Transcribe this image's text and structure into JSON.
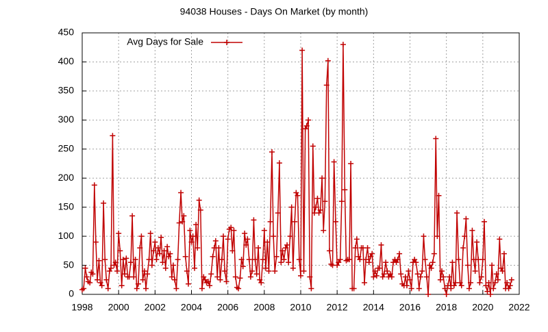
{
  "chart_data": {
    "type": "line",
    "title": "94038 Houses - Days On Market (by month)",
    "xlim": [
      1998,
      2022
    ],
    "xticks": [
      1998,
      2000,
      2002,
      2004,
      2006,
      2008,
      2010,
      2012,
      2014,
      2016,
      2018,
      2020,
      2022
    ],
    "ylim": [
      0,
      450
    ],
    "yticks": [
      0,
      50,
      100,
      150,
      200,
      250,
      300,
      350,
      400,
      450
    ],
    "grid": true,
    "legend": "top-left",
    "x": [
      1998.0,
      1998.08,
      1998.17,
      1998.25,
      1998.33,
      1998.42,
      1998.5,
      1998.58,
      1998.67,
      1998.75,
      1998.83,
      1998.92,
      1999.0,
      1999.08,
      1999.17,
      1999.25,
      1999.33,
      1999.42,
      1999.5,
      1999.58,
      1999.67,
      1999.75,
      1999.83,
      1999.92,
      2000.0,
      2000.08,
      2000.17,
      2000.25,
      2000.33,
      2000.42,
      2000.5,
      2000.58,
      2000.67,
      2000.75,
      2000.83,
      2000.92,
      2001.0,
      2001.08,
      2001.17,
      2001.25,
      2001.33,
      2001.42,
      2001.5,
      2001.58,
      2001.67,
      2001.75,
      2001.83,
      2001.92,
      2002.0,
      2002.08,
      2002.17,
      2002.25,
      2002.33,
      2002.42,
      2002.5,
      2002.58,
      2002.67,
      2002.75,
      2002.83,
      2002.92,
      2003.0,
      2003.08,
      2003.17,
      2003.25,
      2003.33,
      2003.42,
      2003.5,
      2003.58,
      2003.67,
      2003.75,
      2003.83,
      2003.92,
      2004.0,
      2004.08,
      2004.17,
      2004.25,
      2004.33,
      2004.42,
      2004.5,
      2004.58,
      2004.67,
      2004.75,
      2004.83,
      2004.92,
      2005.0,
      2005.08,
      2005.17,
      2005.25,
      2005.33,
      2005.42,
      2005.5,
      2005.58,
      2005.67,
      2005.75,
      2005.83,
      2005.92,
      2006.0,
      2006.08,
      2006.17,
      2006.25,
      2006.33,
      2006.42,
      2006.5,
      2006.58,
      2006.67,
      2006.75,
      2006.83,
      2006.92,
      2007.0,
      2007.08,
      2007.17,
      2007.25,
      2007.33,
      2007.42,
      2007.5,
      2007.58,
      2007.67,
      2007.75,
      2007.83,
      2007.92,
      2008.0,
      2008.08,
      2008.17,
      2008.25,
      2008.33,
      2008.42,
      2008.5,
      2008.58,
      2008.67,
      2008.75,
      2008.83,
      2008.92,
      2009.0,
      2009.08,
      2009.17,
      2009.25,
      2009.33,
      2009.42,
      2009.5,
      2009.58,
      2009.67,
      2009.75,
      2009.83,
      2009.92,
      2010.0,
      2010.08,
      2010.17,
      2010.25,
      2010.33,
      2010.42,
      2010.5,
      2010.58,
      2010.67,
      2010.75,
      2010.83,
      2010.92,
      2011.0,
      2011.08,
      2011.17,
      2011.25,
      2011.33,
      2011.42,
      2011.5,
      2011.58,
      2011.67,
      2011.75,
      2011.83,
      2011.92,
      2012.0,
      2012.08,
      2012.17,
      2012.25,
      2012.33,
      2012.42,
      2012.5,
      2012.58,
      2012.67,
      2012.75,
      2012.83,
      2012.92,
      2013.0,
      2013.08,
      2013.17,
      2013.25,
      2013.33,
      2013.42,
      2013.5,
      2013.58,
      2013.67,
      2013.75,
      2013.83,
      2013.92,
      2014.0,
      2014.08,
      2014.17,
      2014.25,
      2014.33,
      2014.42,
      2014.5,
      2014.58,
      2014.67,
      2014.75,
      2014.83,
      2014.92,
      2015.0,
      2015.08,
      2015.17,
      2015.25,
      2015.33,
      2015.42,
      2015.5,
      2015.58,
      2015.67,
      2015.75,
      2015.83,
      2015.92,
      2016.0,
      2016.08,
      2016.17,
      2016.25,
      2016.33,
      2016.42,
      2016.5,
      2016.58,
      2016.67,
      2016.75,
      2016.83,
      2016.92,
      2017.0,
      2017.08,
      2017.17,
      2017.25,
      2017.33,
      2017.42,
      2017.5,
      2017.58,
      2017.67,
      2017.75,
      2017.83,
      2017.92,
      2018.0,
      2018.08,
      2018.17,
      2018.25,
      2018.33,
      2018.42,
      2018.5,
      2018.58,
      2018.67,
      2018.75,
      2018.83,
      2018.92,
      2019.0,
      2019.08,
      2019.17,
      2019.25,
      2019.33,
      2019.42,
      2019.5,
      2019.58,
      2019.67,
      2019.75,
      2019.83,
      2019.92,
      2020.0,
      2020.08,
      2020.17,
      2020.25,
      2020.33,
      2020.42,
      2020.5,
      2020.58,
      2020.67,
      2020.75,
      2020.83,
      2020.92,
      2021.0,
      2021.08,
      2021.17,
      2021.25,
      2021.33,
      2021.42,
      2021.5,
      2021.58
    ],
    "series": [
      {
        "name": "Avg Days for Sale",
        "color": "#c00000",
        "values": [
          8,
          10,
          45,
          30,
          22,
          20,
          38,
          35,
          188,
          90,
          25,
          58,
          20,
          15,
          157,
          60,
          25,
          10,
          40,
          45,
          273,
          50,
          55,
          40,
          105,
          75,
          15,
          60,
          35,
          62,
          30,
          30,
          55,
          135,
          30,
          60,
          10,
          18,
          80,
          100,
          25,
          40,
          10,
          35,
          60,
          105,
          50,
          75,
          90,
          60,
          80,
          70,
          98,
          55,
          75,
          45,
          82,
          65,
          70,
          30,
          50,
          25,
          10,
          60,
          123,
          175,
          125,
          135,
          65,
          40,
          18,
          110,
          90,
          100,
          45,
          120,
          80,
          162,
          145,
          10,
          30,
          25,
          20,
          22,
          15,
          35,
          65,
          80,
          92,
          30,
          80,
          25,
          60,
          100,
          40,
          22,
          95,
          112,
          115,
          75,
          110,
          30,
          12,
          10,
          28,
          60,
          48,
          105,
          85,
          95,
          60,
          30,
          40,
          128,
          60,
          35,
          80,
          25,
          20,
          60,
          110,
          45,
          90,
          40,
          125,
          245,
          100,
          40,
          65,
          140,
          226,
          55,
          75,
          60,
          80,
          85,
          55,
          100,
          150,
          45,
          125,
          175,
          170,
          60,
          32,
          420,
          40,
          285,
          290,
          300,
          30,
          10,
          255,
          140,
          150,
          165,
          140,
          145,
          200,
          110,
          160,
          360,
          402,
          75,
          52,
          50,
          228,
          125,
          50,
          55,
          60,
          160,
          430,
          180,
          58,
          60,
          60,
          225,
          10,
          10,
          80,
          95,
          65,
          60,
          80,
          80,
          20,
          60,
          80,
          55,
          65,
          70,
          30,
          40,
          32,
          45,
          45,
          85,
          30,
          35,
          55,
          40,
          30,
          35,
          30,
          55,
          60,
          55,
          60,
          70,
          35,
          18,
          15,
          30,
          15,
          40,
          25,
          10,
          55,
          60,
          55,
          35,
          10,
          30,
          40,
          100,
          60,
          30,
          0,
          50,
          45,
          55,
          70,
          268,
          100,
          170,
          25,
          40,
          30,
          10,
          0,
          15,
          30,
          10,
          55,
          15,
          20,
          140,
          60,
          20,
          15,
          80,
          100,
          130,
          50,
          10,
          20,
          110,
          60,
          40,
          90,
          60,
          20,
          30,
          60,
          125,
          15,
          5,
          20,
          0,
          50,
          10,
          20,
          35,
          25,
          95,
          45,
          40,
          70,
          10,
          20,
          10,
          15,
          25
        ]
      }
    ]
  }
}
